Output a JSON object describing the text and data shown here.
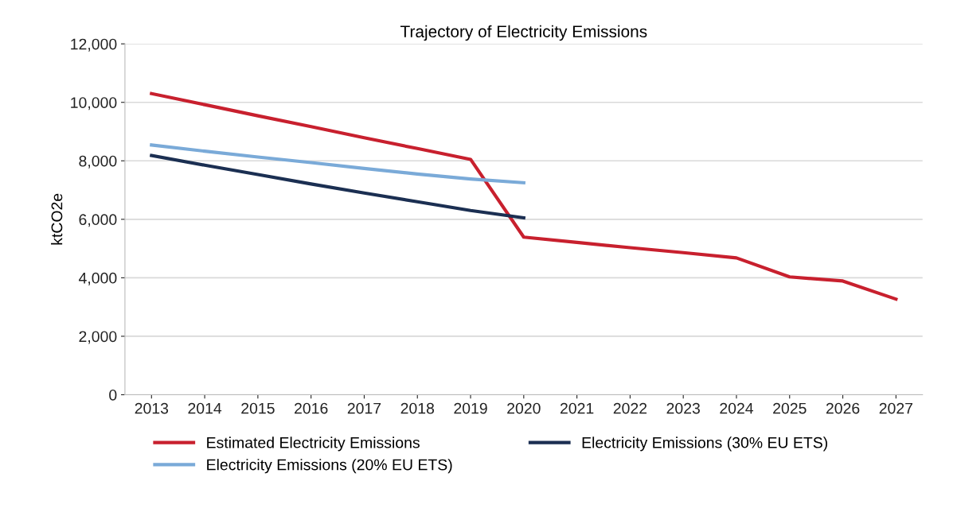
{
  "chart_data": {
    "type": "line",
    "title": "Trajectory of Electricity Emissions",
    "ylabel": "ktCO2e",
    "categories": [
      "2013",
      "2014",
      "2015",
      "2016",
      "2017",
      "2018",
      "2019",
      "2020",
      "2021",
      "2022",
      "2023",
      "2024",
      "2025",
      "2026",
      "2027"
    ],
    "series": [
      {
        "name": "Estimated Electricity Emissions",
        "color": "#c8202e",
        "values": [
          10300,
          9920,
          9540,
          9170,
          8790,
          8420,
          8050,
          5390,
          5210,
          5030,
          4860,
          4680,
          4030,
          3890,
          3270
        ]
      },
      {
        "name": "Electricity Emissions (20% EU ETS)",
        "color": "#7aaad8",
        "values": [
          8540,
          8330,
          8130,
          7940,
          7740,
          7550,
          7380,
          7250,
          null,
          null,
          null,
          null,
          null,
          null,
          null
        ]
      },
      {
        "name": "Electricity Emissions (30% EU ETS)",
        "color": "#1b2f52",
        "values": [
          8180,
          7850,
          7530,
          7210,
          6900,
          6600,
          6300,
          6050,
          null,
          null,
          null,
          null,
          null,
          null,
          null
        ]
      }
    ],
    "ylim": [
      0,
      12000
    ],
    "yticks": [
      {
        "value": 0,
        "label": "0"
      },
      {
        "value": 2000,
        "label": "2,000"
      },
      {
        "value": 4000,
        "label": "4,000"
      },
      {
        "value": 6000,
        "label": "6,000"
      },
      {
        "value": 8000,
        "label": "8,000"
      },
      {
        "value": 10000,
        "label": "10,000"
      },
      {
        "value": 12000,
        "label": "12,000"
      }
    ],
    "grid": "y",
    "legend": "bottom",
    "marker": "none",
    "line_style": "solid"
  }
}
